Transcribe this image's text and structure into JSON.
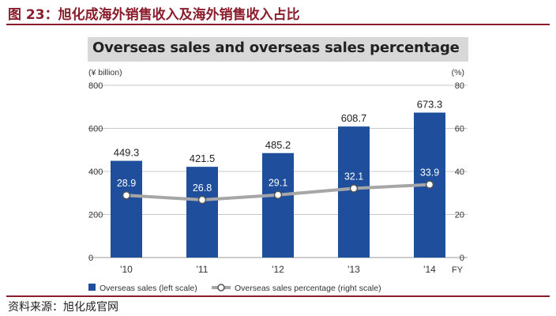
{
  "figure": {
    "label": "图 23：旭化成海外销售收入及海外销售收入占比",
    "source": "资料来源：旭化成官网"
  },
  "chart_data": {
    "type": "bar",
    "title": "Overseas sales and overseas sales percentage",
    "categories": [
      "'10",
      "'11",
      "'12",
      "'13",
      "'14"
    ],
    "x_unit_label": "FY",
    "left_axis": {
      "unit": "(¥ billion)",
      "min": 0,
      "max": 800,
      "ticks": [
        0,
        200,
        400,
        600,
        800
      ]
    },
    "right_axis": {
      "unit": "(%)",
      "min": 0,
      "max": 80,
      "ticks": [
        0,
        20,
        40,
        60,
        80
      ]
    },
    "series": [
      {
        "name": "Overseas sales (left scale)",
        "type": "bar",
        "axis": "left",
        "values": [
          449.3,
          421.5,
          485.2,
          608.7,
          673.3
        ],
        "labels": [
          "449.3",
          "421.5",
          "485.2",
          "608.7",
          "673.3"
        ]
      },
      {
        "name": "Overseas sales percentage (right scale)",
        "type": "line",
        "axis": "right",
        "values": [
          28.9,
          26.8,
          29.1,
          32.1,
          33.9
        ],
        "labels": [
          "28.9",
          "26.8",
          "29.1",
          "32.1",
          "33.9"
        ]
      }
    ],
    "grid": true,
    "legend": "bottom-left",
    "colors": {
      "bar": "#1f4e9c",
      "line": "#a6a6a6",
      "marker_fill": "#ffffff",
      "grid": "#c8c8c8",
      "accent": "#8a1c2b"
    }
  }
}
